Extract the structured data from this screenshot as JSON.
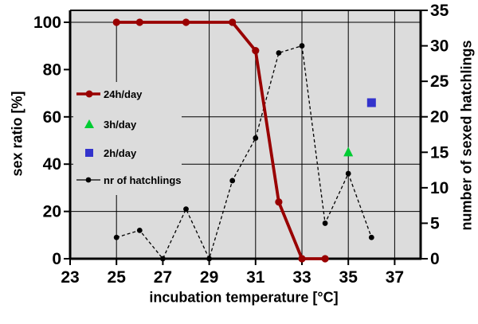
{
  "figure": {
    "bg_color": "#ffffff",
    "plot_bg_color": "#dcdcdc",
    "grid_color": "#000000",
    "axis_color": "#000000"
  },
  "chart_data": {
    "type": "line",
    "title": "",
    "xlabel": "incubation temperature [°C]",
    "ylabel_left": "sex ratio [%]",
    "ylabel_right": "number of sexed hatchlings",
    "x_range": [
      23,
      38.1
    ],
    "y_left_range": [
      0,
      105
    ],
    "y_right_range": [
      0,
      35
    ],
    "x_ticks": [
      23,
      25,
      27,
      29,
      31,
      33,
      35,
      37
    ],
    "y_left_ticks": [
      0,
      20,
      40,
      60,
      80,
      100
    ],
    "y_right_ticks": [
      0,
      5,
      10,
      15,
      20,
      25,
      30,
      35
    ],
    "gridlines": {
      "vertical_at_x": [
        25,
        29,
        31,
        33,
        35,
        37
      ],
      "horizontal_at_left_y": [
        20,
        40,
        60,
        100
      ]
    },
    "legend": {
      "position": "inside-upper-left",
      "items": [
        "24h/day",
        "3h/day",
        "2h/day",
        "nr of hatchlings"
      ]
    },
    "series": [
      {
        "name": "24h/day",
        "axis": "left",
        "color": "#990000",
        "marker": "circle",
        "line": "solid",
        "points": [
          [
            25,
            100
          ],
          [
            26,
            100
          ],
          [
            28,
            100
          ],
          [
            30,
            100
          ],
          [
            31,
            88
          ],
          [
            32,
            24
          ],
          [
            33,
            0
          ],
          [
            34,
            0
          ]
        ]
      },
      {
        "name": "3h/day",
        "axis": "left",
        "color": "#00cc33",
        "marker": "triangle",
        "line": "none",
        "points": [
          [
            35,
            45
          ]
        ]
      },
      {
        "name": "2h/day",
        "axis": "left",
        "color": "#3333cc",
        "marker": "square",
        "line": "none",
        "points": [
          [
            36,
            66
          ]
        ]
      },
      {
        "name": "nr of hatchlings",
        "axis": "right",
        "color": "#000000",
        "marker": "dot",
        "line": "dashed",
        "points": [
          [
            25,
            3
          ],
          [
            26,
            4
          ],
          [
            27,
            0
          ],
          [
            28,
            7
          ],
          [
            29,
            0
          ],
          [
            30,
            11
          ],
          [
            31,
            17
          ],
          [
            32,
            29
          ],
          [
            33,
            30
          ],
          [
            34,
            5
          ],
          [
            35,
            12
          ],
          [
            36,
            3
          ]
        ]
      }
    ]
  }
}
